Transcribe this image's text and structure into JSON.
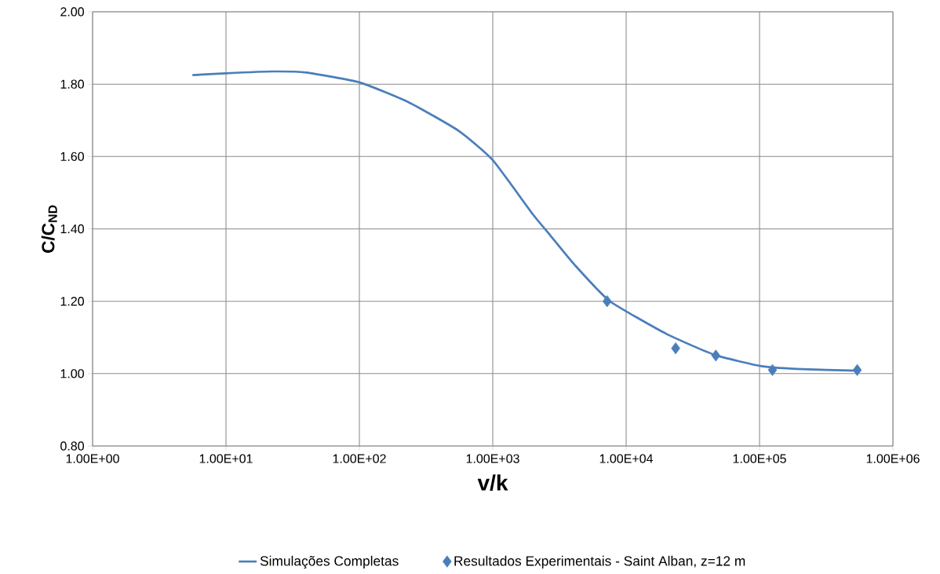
{
  "chart_data": {
    "type": "line",
    "xlabel": "v/k",
    "ylabel": "C/C$_{ND}$",
    "log": "x",
    "grid": true,
    "legend": "bottom",
    "xlim": [
      1,
      1000000
    ],
    "ylim": [
      0.8,
      2.0
    ],
    "xticks": [
      {
        "value": 1,
        "label": "1.00E+00"
      },
      {
        "value": 10,
        "label": "1.00E+01"
      },
      {
        "value": 100,
        "label": "1.00E+02"
      },
      {
        "value": 1000,
        "label": "1.00E+03"
      },
      {
        "value": 10000,
        "label": "1.00E+04"
      },
      {
        "value": 100000,
        "label": "1.00E+05"
      },
      {
        "value": 1000000,
        "label": "1.00E+06"
      }
    ],
    "yticks": [
      {
        "value": 0.8,
        "label": "0.80"
      },
      {
        "value": 1.0,
        "label": "1.00"
      },
      {
        "value": 1.2,
        "label": "1.20"
      },
      {
        "value": 1.4,
        "label": "1.40"
      },
      {
        "value": 1.6,
        "label": "1.60"
      },
      {
        "value": 1.8,
        "label": "1.80"
      },
      {
        "value": 2.0,
        "label": "2.00"
      }
    ],
    "series": [
      {
        "name": "Simulações Completas",
        "color": "#4a7ebb",
        "marker": "none",
        "line_style": "solid",
        "x": [
          5.6,
          10,
          22,
          40,
          100,
          234,
          555,
          1000,
          2000,
          2700,
          4100,
          7500,
          20000,
          46000,
          102000,
          190000,
          550000
        ],
        "values": [
          1.825,
          1.83,
          1.835,
          1.832,
          1.805,
          1.75,
          1.671,
          1.59,
          1.44,
          1.382,
          1.301,
          1.201,
          1.11,
          1.052,
          1.021,
          1.013,
          1.008
        ]
      },
      {
        "name": "Resultados Experimentais - Saint Alban, z=12 m",
        "type": "scatter",
        "color": "#4a7ebb",
        "marker": "diamond",
        "x": [
          7200,
          23500,
          47000,
          125000,
          540000
        ],
        "values": [
          1.2,
          1.07,
          1.05,
          1.01,
          1.01
        ]
      }
    ]
  }
}
